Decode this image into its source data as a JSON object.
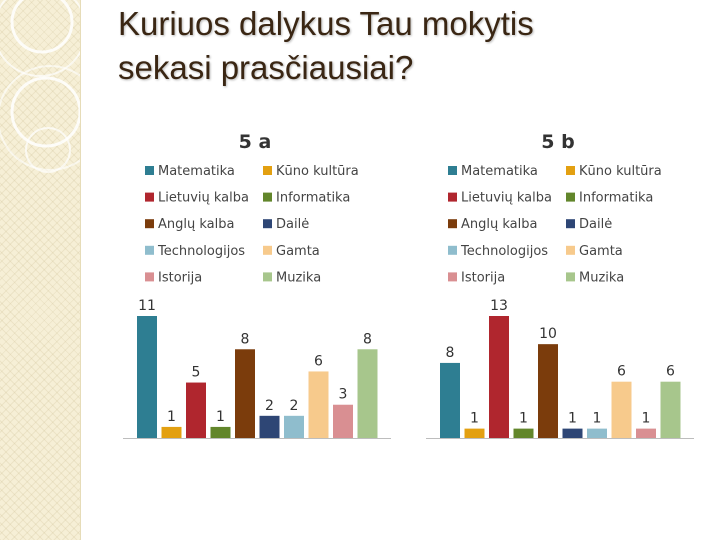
{
  "slide": {
    "title_line1": "Kuriuos  dalykus  Tau mokytis",
    "title_line2": "sekasi prasčiausiai?"
  },
  "colors": {
    "band": "#f6efd6",
    "title": "#3a2613"
  },
  "chart_data": [
    {
      "type": "bar",
      "title": "5 a",
      "categories": [
        "Matematika",
        "Kūno kultūra",
        "Lietuvių kalba",
        "Informatika",
        "Anglų kalba",
        "Dailė",
        "Technologijos",
        "Gamta",
        "Istorija",
        "Muzika"
      ],
      "values": [
        11,
        1,
        5,
        1,
        8,
        2,
        2,
        6,
        3,
        8
      ],
      "bar_colors": [
        "#2e7e92",
        "#e3a011",
        "#b0262e",
        "#62862b",
        "#7b3c0c",
        "#2e4675",
        "#8fbdcd",
        "#f7ca8c",
        "#d98f92",
        "#a7c68c"
      ],
      "legend": {
        "placement": "top",
        "left_column": [
          "Matematika",
          "Lietuvių kalba",
          "Anglų kalba",
          "Technologijos",
          "Istorija"
        ],
        "right_column": [
          "Kūno kultūra",
          "Informatika",
          "Dailė",
          "Gamta",
          "Muzika"
        ]
      },
      "ylim": [
        0,
        11
      ],
      "xlabel": "",
      "ylabel": "",
      "grid": false
    },
    {
      "type": "bar",
      "title": "5 b",
      "categories": [
        "Matematika",
        "Kūno kultūra",
        "Lietuvių kalba",
        "Informatika",
        "Anglų kalba",
        "Dailė",
        "Technologijos",
        "Gamta",
        "Istorija",
        "Muzika"
      ],
      "values": [
        8,
        1,
        13,
        1,
        10,
        1,
        1,
        6,
        1,
        6
      ],
      "bar_colors": [
        "#2e7e92",
        "#e3a011",
        "#b0262e",
        "#62862b",
        "#7b3c0c",
        "#2e4675",
        "#8fbdcd",
        "#f7ca8c",
        "#d98f92",
        "#a7c68c"
      ],
      "legend": {
        "placement": "top",
        "left_column": [
          "Matematika",
          "Lietuvių kalba",
          "Anglų kalba",
          "Technologijos",
          "Istorija"
        ],
        "right_column": [
          "Kūno kultūra",
          "Informatika",
          "Dailė",
          "Gamta",
          "Muzika"
        ]
      },
      "ylim": [
        0,
        13
      ],
      "xlabel": "",
      "ylabel": "",
      "grid": false
    }
  ]
}
